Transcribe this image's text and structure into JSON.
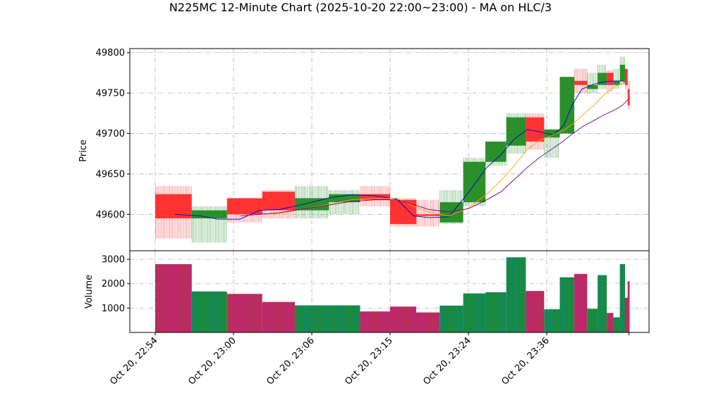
{
  "chart_data": {
    "type": "candlestick",
    "title": "N225MC 12-Minute Chart (2025-10-20 22:00~23:00) - MA on HLC/3",
    "price_panel": {
      "ylabel": "Price",
      "ylim": [
        49555,
        49805
      ],
      "yticks": [
        49600,
        49650,
        49700,
        49750,
        49800
      ],
      "grid": true
    },
    "volume_panel": {
      "ylabel": "Volume",
      "ylim": [
        0,
        3350
      ],
      "yticks": [
        1000,
        2000,
        3000
      ],
      "grid": true
    },
    "x_axis": {
      "tick_labels": [
        "Oct 20, 22:54",
        "Oct 20, 23:00",
        "Oct 20, 23:06",
        "Oct 20, 23:15",
        "Oct 20, 23:24",
        "Oct 20, 23:36"
      ],
      "tick_positions_min": [
        0,
        6,
        12,
        18,
        24,
        30
      ]
    },
    "bars": [
      {
        "t0": 0.0,
        "t1": 2.8,
        "o": 49625,
        "h": 49635,
        "l": 49570,
        "c": 49595,
        "v": 2800
      },
      {
        "t0": 2.8,
        "t1": 5.5,
        "o": 49595,
        "h": 49610,
        "l": 49565,
        "c": 49605,
        "v": 1680
      },
      {
        "t0": 5.5,
        "t1": 8.2,
        "o": 49620,
        "h": 49620,
        "l": 49590,
        "c": 49600,
        "v": 1580
      },
      {
        "t0": 8.2,
        "t1": 10.7,
        "o": 49628,
        "h": 49630,
        "l": 49595,
        "c": 49605,
        "v": 1250
      },
      {
        "t0": 10.7,
        "t1": 13.3,
        "o": 49605,
        "h": 49635,
        "l": 49595,
        "c": 49620,
        "v": 1110
      },
      {
        "t0": 13.3,
        "t1": 15.7,
        "o": 49615,
        "h": 49630,
        "l": 49600,
        "c": 49625,
        "v": 1110
      },
      {
        "t0": 15.7,
        "t1": 18.0,
        "o": 49625,
        "h": 49635,
        "l": 49610,
        "c": 49618,
        "v": 860
      },
      {
        "t0": 18.0,
        "t1": 20.0,
        "o": 49618,
        "h": 49620,
        "l": 49585,
        "c": 49588,
        "v": 1060
      },
      {
        "t0": 20.0,
        "t1": 21.8,
        "o": 49600,
        "h": 49618,
        "l": 49585,
        "c": 49598,
        "v": 820
      },
      {
        "t0": 21.8,
        "t1": 23.6,
        "o": 49590,
        "h": 49630,
        "l": 49588,
        "c": 49615,
        "v": 1100
      },
      {
        "t0": 23.6,
        "t1": 25.3,
        "o": 49615,
        "h": 49670,
        "l": 49610,
        "c": 49665,
        "v": 1600
      },
      {
        "t0": 25.3,
        "t1": 26.9,
        "o": 49665,
        "h": 49690,
        "l": 49660,
        "c": 49690,
        "v": 1650
      },
      {
        "t0": 26.9,
        "t1": 28.4,
        "o": 49685,
        "h": 49725,
        "l": 49675,
        "c": 49720,
        "v": 3080
      },
      {
        "t0": 28.4,
        "t1": 29.8,
        "o": 49720,
        "h": 49725,
        "l": 49680,
        "c": 49690,
        "v": 1700
      },
      {
        "t0": 29.8,
        "t1": 31.0,
        "o": 49695,
        "h": 49705,
        "l": 49670,
        "c": 49705,
        "v": 950
      },
      {
        "t0": 31.0,
        "t1": 32.1,
        "o": 49700,
        "h": 49770,
        "l": 49700,
        "c": 49770,
        "v": 2260
      },
      {
        "t0": 32.1,
        "t1": 33.1,
        "o": 49765,
        "h": 49780,
        "l": 49750,
        "c": 49760,
        "v": 2400
      },
      {
        "t0": 33.1,
        "t1": 33.9,
        "o": 49755,
        "h": 49775,
        "l": 49750,
        "c": 49760,
        "v": 970
      },
      {
        "t0": 33.9,
        "t1": 34.6,
        "o": 49760,
        "h": 49785,
        "l": 49755,
        "c": 49775,
        "v": 2350
      },
      {
        "t0": 34.6,
        "t1": 35.1,
        "o": 49775,
        "h": 49778,
        "l": 49752,
        "c": 49760,
        "v": 800
      },
      {
        "t0": 35.1,
        "t1": 35.6,
        "o": 49760,
        "h": 49780,
        "l": 49755,
        "c": 49765,
        "v": 620
      },
      {
        "t0": 35.6,
        "t1": 36.0,
        "o": 49765,
        "h": 49795,
        "l": 49760,
        "c": 49785,
        "v": 2800
      },
      {
        "t0": 36.0,
        "t1": 36.2,
        "o": 49780,
        "h": 49780,
        "l": 49755,
        "c": 49760,
        "v": 1420
      },
      {
        "t0": 36.2,
        "t1": 36.35,
        "o": 49755,
        "h": 49765,
        "l": 49730,
        "c": 49735,
        "v": 2100
      }
    ],
    "ma_lines": [
      {
        "color": "#0000cc",
        "x": [
          1.5,
          3.5,
          4.8,
          6.5,
          8.0,
          9.5,
          11.5,
          13.5,
          15.0,
          16.8,
          18.5,
          19.8,
          21.0,
          22.5,
          24.0,
          25.4,
          26.5,
          27.5,
          28.5,
          29.5,
          30.5,
          31.3,
          32.0,
          32.7,
          33.6,
          34.4,
          35.2,
          35.8,
          36.2
        ],
        "y": [
          49600,
          49598,
          49594,
          49594,
          49605,
          49606,
          49613,
          49621,
          49624,
          49623,
          49619,
          49598,
          49596,
          49597,
          49627,
          49658,
          49674,
          49693,
          49705,
          49702,
          49698,
          49710,
          49737,
          49755,
          49761,
          49764,
          49765,
          49765,
          49762
        ]
      },
      {
        "color": "#ffa500",
        "x": [
          6.5,
          8.0,
          9.5,
          11.5,
          13.5,
          15.0,
          16.8,
          18.5,
          19.8,
          21.0,
          22.5,
          24.0,
          25.4,
          26.5,
          27.5,
          28.5,
          29.5,
          30.5,
          31.3,
          32.0,
          32.7,
          33.6,
          34.4,
          35.2,
          35.8,
          36.2
        ],
        "y": [
          49598,
          49600,
          49601,
          49607,
          49613,
          49618,
          49620,
          49620,
          49610,
          49603,
          49598,
          49608,
          49625,
          49642,
          49660,
          49680,
          49692,
          49698,
          49704,
          49712,
          49722,
          49735,
          49748,
          49758,
          49762,
          49763
        ]
      },
      {
        "color": "#800080",
        "x": [
          6.5,
          8.0,
          9.5,
          11.5,
          13.5,
          15.0,
          16.8,
          18.5,
          19.8,
          21.0,
          22.5,
          24.0,
          25.4,
          26.5,
          27.5,
          28.5,
          29.5,
          30.5,
          31.3,
          32.0,
          32.7,
          33.6,
          34.4,
          35.2,
          35.8,
          36.2
        ],
        "y": [
          49598,
          49600,
          49602,
          49607,
          49612,
          49616,
          49618,
          49618,
          49612,
          49606,
          49603,
          49607,
          49618,
          49628,
          49643,
          49658,
          49671,
          49682,
          49691,
          49700,
          49708,
          49716,
          49723,
          49729,
          49735,
          49742
        ]
      }
    ],
    "colors": {
      "up": "#228b22",
      "down": "#ff2a2a",
      "vol_edge_up": "#008080",
      "vol_edge_down": "#c71585",
      "grid": "#b0b0b0"
    }
  }
}
